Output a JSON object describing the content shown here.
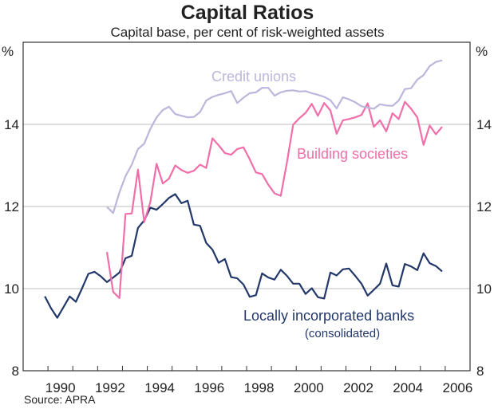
{
  "chart_data": {
    "type": "line",
    "title": "Capital Ratios",
    "subtitle": "Capital base, per cent of risk-weighted assets",
    "ylabel_left": "%",
    "ylabel_right": "%",
    "source": "Source: APRA",
    "xlim": [
      1989,
      2007
    ],
    "ylim": [
      8,
      16
    ],
    "x_tick_labels": [
      "1990",
      "1992",
      "1994",
      "1996",
      "1998",
      "2000",
      "2002",
      "2004",
      "2006"
    ],
    "y_tick_labels": [
      "8",
      "10",
      "12",
      "14"
    ],
    "y_ticks": [
      8,
      10,
      12,
      14
    ],
    "gridlines_y": [
      10,
      12,
      14
    ],
    "grid": true,
    "frequency": "quarterly",
    "series": [
      {
        "name": "Locally incorporated banks",
        "name_line2": "(consolidated)",
        "color": "#22386a",
        "start": "1989-Q4",
        "values": [
          9.81,
          9.52,
          9.29,
          9.55,
          9.81,
          9.68,
          10.01,
          10.36,
          10.41,
          10.3,
          10.16,
          10.27,
          10.39,
          10.74,
          10.8,
          11.48,
          11.66,
          11.97,
          11.92,
          12.06,
          12.21,
          12.3,
          12.08,
          12.14,
          11.56,
          11.53,
          11.11,
          10.95,
          10.63,
          10.72,
          10.28,
          10.25,
          10.1,
          9.8,
          9.84,
          10.37,
          10.27,
          10.22,
          10.46,
          10.31,
          10.12,
          10.12,
          9.87,
          10.01,
          9.79,
          9.76,
          10.39,
          10.32,
          10.47,
          10.49,
          10.31,
          10.12,
          9.83,
          9.97,
          10.12,
          10.61,
          10.08,
          10.05,
          10.6,
          10.54,
          10.45,
          10.86,
          10.62,
          10.55,
          10.42
        ]
      },
      {
        "name": "Building societies",
        "color": "#f06ea9",
        "start": "1992-Q2",
        "values": [
          10.89,
          9.92,
          9.77,
          11.82,
          11.83,
          12.9,
          11.62,
          12.11,
          13.04,
          12.56,
          12.68,
          13.0,
          12.89,
          12.82,
          12.87,
          13.02,
          12.94,
          13.66,
          13.49,
          13.3,
          13.26,
          13.4,
          13.44,
          13.15,
          12.83,
          12.79,
          12.53,
          12.32,
          12.26,
          13.08,
          13.99,
          14.15,
          14.28,
          14.5,
          14.21,
          14.52,
          14.34,
          13.77,
          14.1,
          14.13,
          14.17,
          14.23,
          14.51,
          13.94,
          14.1,
          13.83,
          14.27,
          14.13,
          14.55,
          14.38,
          14.17,
          13.5,
          13.97,
          13.76,
          13.94
        ]
      },
      {
        "name": "Credit unions",
        "color": "#bbb7dc",
        "start": "1992-Q2",
        "values": [
          11.99,
          11.84,
          12.34,
          12.74,
          13.02,
          13.4,
          13.53,
          13.89,
          14.17,
          14.35,
          14.43,
          14.25,
          14.21,
          14.17,
          14.18,
          14.3,
          14.58,
          14.67,
          14.72,
          14.76,
          14.81,
          14.52,
          14.65,
          14.76,
          14.78,
          14.89,
          14.89,
          14.7,
          14.78,
          14.82,
          14.83,
          14.8,
          14.81,
          14.76,
          14.72,
          14.67,
          14.59,
          14.39,
          14.66,
          14.61,
          14.54,
          14.44,
          14.41,
          14.38,
          14.49,
          14.46,
          14.45,
          14.58,
          14.86,
          14.88,
          15.09,
          15.2,
          15.42,
          15.52,
          15.56
        ]
      }
    ]
  }
}
